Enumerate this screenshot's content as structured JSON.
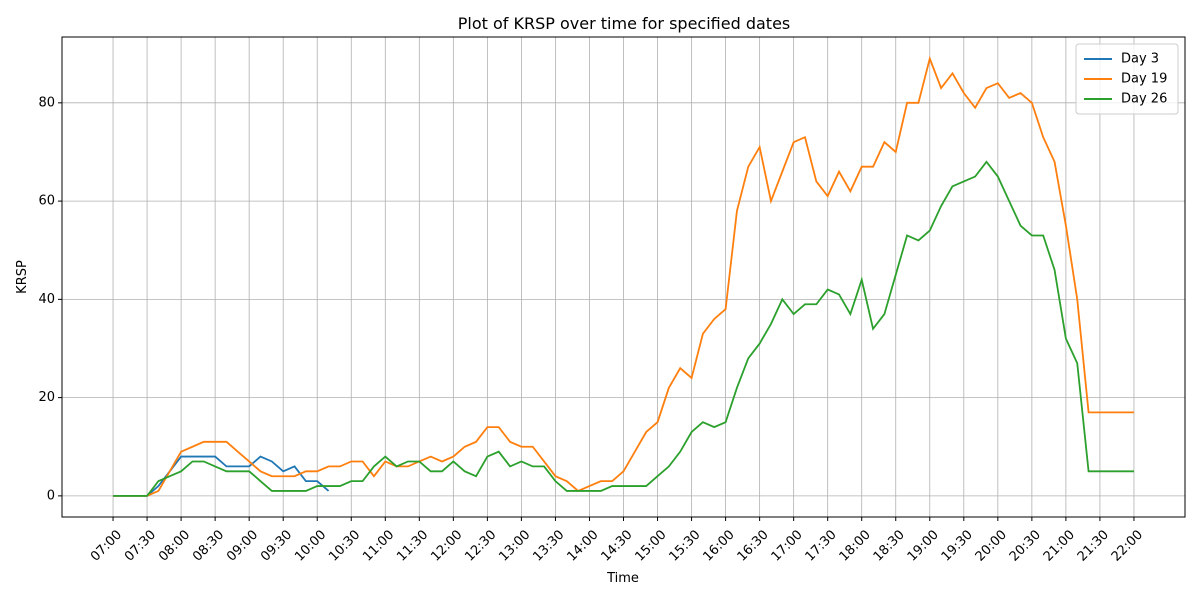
{
  "chart_data": {
    "type": "line",
    "title": "Plot of KRSP over time for specified dates",
    "x_label": "Time",
    "y_label": "KRSP",
    "x": [
      "07:00",
      "07:10",
      "07:20",
      "07:30",
      "07:40",
      "07:50",
      "08:00",
      "08:10",
      "08:20",
      "08:30",
      "08:40",
      "08:50",
      "09:00",
      "09:10",
      "09:20",
      "09:30",
      "09:40",
      "09:50",
      "10:00",
      "10:10",
      "10:20",
      "10:30",
      "10:40",
      "10:50",
      "11:00",
      "11:10",
      "11:20",
      "11:30",
      "11:40",
      "11:50",
      "12:00",
      "12:10",
      "12:20",
      "12:30",
      "12:40",
      "12:50",
      "13:00",
      "13:10",
      "13:20",
      "13:30",
      "13:40",
      "13:50",
      "14:00",
      "14:10",
      "14:20",
      "14:30",
      "14:40",
      "14:50",
      "15:00",
      "15:10",
      "15:20",
      "15:30",
      "15:40",
      "15:50",
      "16:00",
      "16:10",
      "16:20",
      "16:30",
      "16:40",
      "16:50",
      "17:00",
      "17:10",
      "17:20",
      "17:30",
      "17:40",
      "17:50",
      "18:00",
      "18:10",
      "18:20",
      "18:30",
      "18:40",
      "18:50",
      "19:00",
      "19:10",
      "19:20",
      "19:30",
      "19:40",
      "19:50",
      "20:00",
      "20:10",
      "20:20",
      "20:30",
      "20:40",
      "20:50",
      "21:00",
      "21:10",
      "21:20",
      "21:30",
      "21:40",
      "21:50",
      "22:00"
    ],
    "series": [
      {
        "name": "Day 3",
        "color": "#1f77b4",
        "values": [
          0,
          0,
          0,
          0,
          2,
          5,
          8,
          8,
          8,
          8,
          6,
          6,
          6,
          8,
          7,
          5,
          6,
          3,
          3,
          1,
          null,
          null,
          null,
          null,
          null,
          null,
          null,
          null,
          null,
          null,
          null,
          null,
          null,
          null,
          null,
          null,
          null,
          null,
          null,
          null,
          null,
          null,
          null,
          null,
          null,
          null,
          null,
          null,
          null,
          null,
          null,
          null,
          null,
          null,
          null,
          null,
          null,
          null,
          null,
          null,
          null,
          null,
          null,
          null,
          null,
          null,
          null,
          null,
          null,
          null,
          null,
          null,
          null,
          null,
          null,
          null,
          null,
          null,
          null,
          null,
          null,
          null,
          null,
          null,
          null,
          null,
          null,
          null,
          null,
          null,
          null
        ]
      },
      {
        "name": "Day 19",
        "color": "#ff7f0e",
        "values": [
          0,
          0,
          0,
          0,
          1,
          5,
          9,
          10,
          11,
          11,
          11,
          9,
          7,
          5,
          4,
          4,
          4,
          5,
          5,
          6,
          6,
          7,
          7,
          4,
          7,
          6,
          6,
          7,
          8,
          7,
          8,
          10,
          11,
          14,
          14,
          11,
          10,
          10,
          7,
          4,
          3,
          1,
          2,
          3,
          3,
          5,
          9,
          13,
          15,
          22,
          26,
          24,
          33,
          36,
          38,
          58,
          67,
          71,
          60,
          66,
          72,
          73,
          64,
          61,
          66,
          62,
          67,
          67,
          72,
          70,
          80,
          80,
          89,
          83,
          86,
          82,
          79,
          83,
          84,
          81,
          82,
          80,
          73,
          68,
          55,
          40,
          17,
          17,
          17,
          17,
          17
        ]
      },
      {
        "name": "Day 26",
        "color": "#2ca02c",
        "values": [
          0,
          0,
          0,
          0,
          3,
          4,
          5,
          7,
          7,
          6,
          5,
          5,
          5,
          3,
          1,
          1,
          1,
          1,
          2,
          2,
          2,
          3,
          3,
          6,
          8,
          6,
          7,
          7,
          5,
          5,
          7,
          5,
          4,
          8,
          9,
          6,
          7,
          6,
          6,
          3,
          1,
          1,
          1,
          1,
          2,
          2,
          2,
          2,
          4,
          6,
          9,
          13,
          15,
          14,
          15,
          22,
          28,
          31,
          35,
          40,
          37,
          39,
          39,
          42,
          41,
          37,
          44,
          34,
          37,
          45,
          53,
          52,
          54,
          59,
          63,
          64,
          65,
          68,
          65,
          60,
          55,
          53,
          53,
          46,
          32,
          27,
          5,
          5,
          5,
          5,
          5
        ]
      }
    ],
    "xlim": [
      "06:15",
      "22:45"
    ],
    "xticks": [
      "07:00",
      "07:30",
      "08:00",
      "08:30",
      "09:00",
      "09:30",
      "10:00",
      "10:30",
      "11:00",
      "11:30",
      "12:00",
      "12:30",
      "13:00",
      "13:30",
      "14:00",
      "14:30",
      "15:00",
      "15:30",
      "16:00",
      "16:30",
      "17:00",
      "17:30",
      "18:00",
      "18:30",
      "19:00",
      "19:30",
      "20:00",
      "20:30",
      "21:00",
      "21:30",
      "22:00"
    ],
    "ylim": [
      -4.3,
      93.4
    ],
    "yticks": [
      0,
      20,
      40,
      60,
      80
    ],
    "grid": true,
    "legend": "upper right"
  }
}
